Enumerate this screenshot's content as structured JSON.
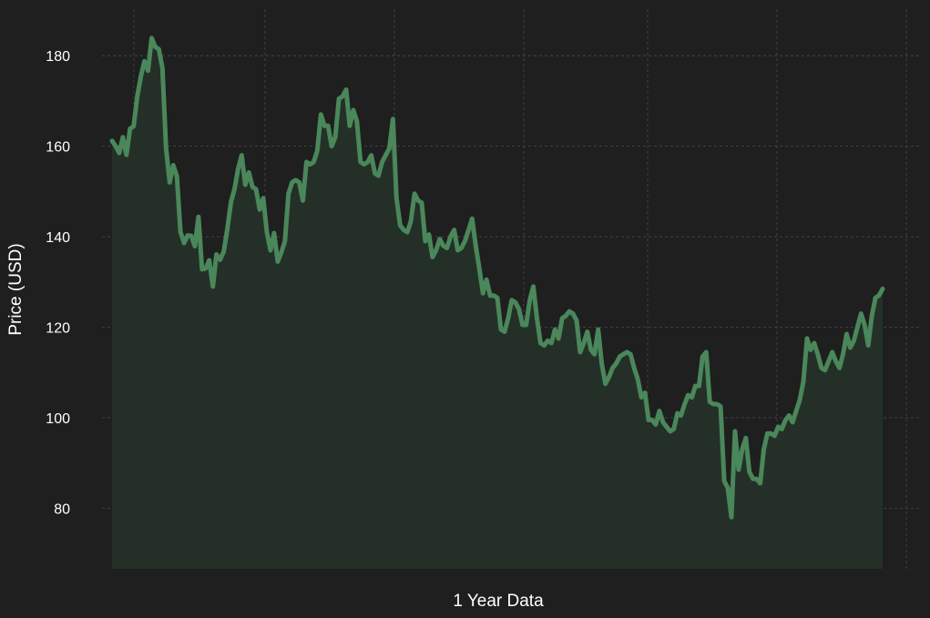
{
  "colors": {
    "background": "#1f1f1f",
    "line": "#4a875a",
    "fill": "#243027",
    "grid": "#4a4a4a",
    "text": "#ffffff"
  },
  "chart_data": {
    "type": "area",
    "title": "",
    "xlabel": "1 Year Data",
    "ylabel": "Price (USD)",
    "ylim": [
      66.6,
      190.3
    ],
    "yticks": [
      80,
      100,
      120,
      140,
      160,
      180
    ],
    "grid": true,
    "legend": "none",
    "series": [
      {
        "values": [
          161.2,
          160.0,
          158.5,
          162.0,
          158.1,
          163.9,
          164.4,
          171.0,
          175.4,
          178.8,
          176.7,
          183.9,
          182.0,
          181.4,
          177.3,
          159.6,
          152.0,
          155.8,
          153.4,
          141.1,
          138.6,
          140.3,
          140.2,
          137.9,
          144.4,
          132.8,
          133.0,
          134.8,
          129.0,
          136.1,
          134.9,
          136.7,
          141.6,
          147.6,
          150.5,
          155.0,
          158.0,
          151.5,
          154.2,
          151.0,
          150.5,
          146.0,
          148.5,
          141.0,
          137.0,
          140.8,
          134.5,
          136.5,
          139.0,
          149.5,
          152.0,
          152.5,
          152.0,
          148.0,
          156.5,
          156.0,
          156.5,
          159.0,
          167.0,
          164.5,
          164.5,
          160.0,
          162.0,
          170.5,
          171.0,
          172.5,
          164.5,
          168.0,
          165.5,
          156.5,
          156.0,
          156.5,
          158.0,
          154.0,
          153.5,
          156.5,
          158.0,
          159.5,
          166.0,
          148.5,
          142.5,
          141.5,
          141.0,
          143.5,
          149.5,
          148.0,
          147.5,
          139.0,
          140.5,
          135.5,
          137.0,
          139.5,
          138.0,
          137.5,
          140.0,
          141.5,
          137.0,
          137.5,
          139.0,
          141.5,
          144.0,
          138.0,
          133.0,
          127.5,
          130.5,
          127.0,
          127.0,
          126.5,
          119.5,
          119.0,
          122.0,
          126.0,
          125.5,
          124.0,
          120.5,
          120.5,
          126.0,
          129.0,
          122.0,
          116.5,
          116.0,
          117.0,
          116.5,
          119.5,
          117.5,
          122.0,
          122.5,
          123.5,
          123.0,
          121.5,
          114.5,
          116.5,
          119.0,
          115.0,
          114.0,
          119.5,
          112.0,
          107.5,
          109.0,
          111.0,
          112.0,
          113.5,
          114.0,
          114.5,
          114.0,
          111.0,
          108.5,
          104.5,
          105.5,
          99.5,
          99.5,
          98.5,
          101.5,
          99.0,
          98.0,
          97.0,
          97.5,
          101.0,
          100.5,
          103.0,
          105.0,
          104.5,
          107.0,
          107.0,
          113.5,
          114.5,
          103.5,
          103.0,
          103.0,
          102.5,
          86.0,
          84.5,
          78.0,
          97.0,
          88.5,
          93.0,
          95.5,
          88.0,
          86.5,
          86.5,
          85.5,
          93.0,
          96.5,
          96.5,
          96.0,
          98.0,
          97.5,
          99.5,
          100.5,
          99.0,
          101.5,
          104.0,
          108.0,
          117.5,
          115.0,
          116.5,
          114.0,
          111.0,
          110.5,
          112.5,
          114.5,
          112.5,
          111.0,
          114.0,
          118.5,
          115.5,
          117.0,
          120.0,
          123.0,
          120.5,
          116.0,
          122.5,
          126.5,
          127.0,
          128.5
        ]
      }
    ]
  }
}
